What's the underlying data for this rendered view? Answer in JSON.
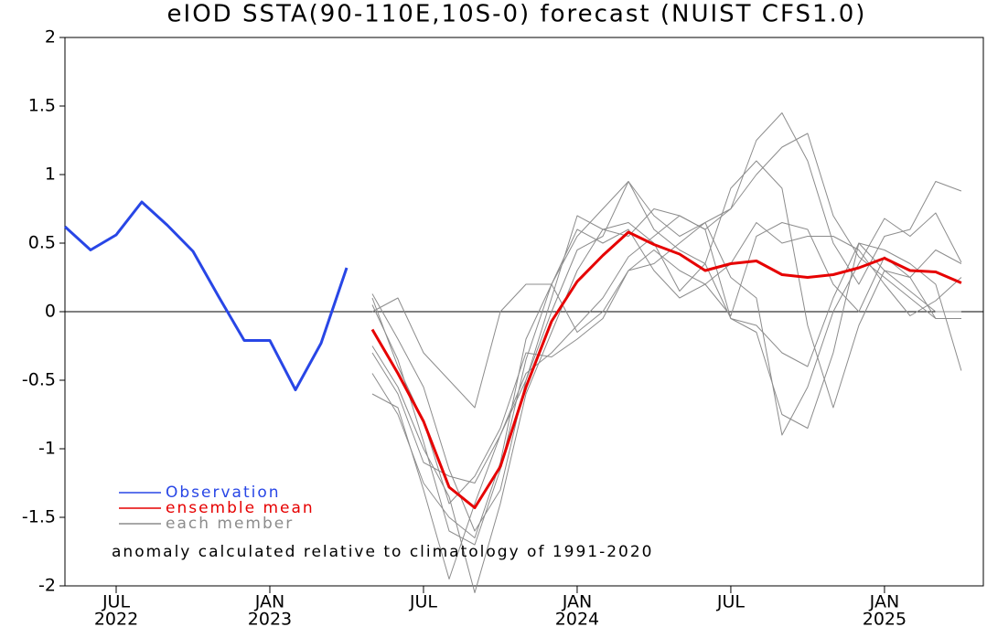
{
  "chart_data": {
    "type": "line",
    "title": "eIOD SSTA(90-110E,10S-0) forecast (NUIST CFS1.0)",
    "annotation": "anomaly calculated relative to climatology of 1991-2020",
    "x": [
      0,
      1,
      2,
      3,
      4,
      5,
      6,
      7,
      8,
      9,
      10,
      11,
      12,
      13,
      14,
      15,
      16,
      17,
      18,
      19,
      20,
      21,
      22,
      23,
      24,
      25,
      26,
      27,
      28,
      29,
      30,
      31,
      32,
      33,
      34,
      35
    ],
    "xlim": [
      0,
      35.86
    ],
    "xticks": [
      {
        "value": 2,
        "label": "JUL",
        "year": "2022"
      },
      {
        "value": 8,
        "label": "JAN",
        "year": "2023"
      },
      {
        "value": 14,
        "label": "JUL"
      },
      {
        "value": 20,
        "label": "JAN",
        "year": "2024"
      },
      {
        "value": 26,
        "label": "JUL"
      },
      {
        "value": 32,
        "label": "JAN",
        "year": "2025"
      }
    ],
    "ylim": [
      -2,
      2
    ],
    "yticks": [
      -2,
      -1.5,
      -1,
      -0.5,
      0,
      0.5,
      1,
      1.5,
      2
    ],
    "zero_line": true,
    "members": {
      "name": "each member",
      "color": "#8c8c8c",
      "series": [
        [
          null,
          null,
          null,
          null,
          null,
          null,
          null,
          null,
          null,
          null,
          null,
          null,
          0.13,
          -0.2,
          -0.55,
          -1.15,
          -1.6,
          -1.3,
          -0.5,
          0.0,
          0.45,
          0.55,
          0.95,
          0.7,
          0.55,
          0.65,
          0.75,
          1.0,
          1.2,
          1.3,
          0.7,
          0.4,
          0.25,
          0.1,
          -0.05,
          -0.05
        ],
        [
          null,
          null,
          null,
          null,
          null,
          null,
          null,
          null,
          null,
          null,
          null,
          null,
          0.05,
          -0.35,
          -0.95,
          -1.6,
          -1.7,
          -1.15,
          -0.35,
          0.2,
          0.55,
          0.75,
          0.95,
          0.6,
          0.45,
          0.35,
          -0.05,
          -0.1,
          -0.3,
          -0.4,
          0.1,
          0.5,
          0.45,
          0.35,
          0.2,
          -0.43
        ],
        [
          null,
          null,
          null,
          null,
          null,
          null,
          null,
          null,
          null,
          null,
          null,
          null,
          -0.6,
          -0.7,
          -1.3,
          -1.95,
          -1.4,
          -0.9,
          -0.5,
          0.1,
          0.7,
          0.6,
          0.55,
          0.75,
          0.7,
          0.6,
          0.75,
          1.25,
          1.45,
          1.1,
          0.5,
          0.2,
          0.55,
          0.6,
          0.95,
          0.88
        ],
        [
          null,
          null,
          null,
          null,
          null,
          null,
          null,
          null,
          null,
          null,
          null,
          null,
          -0.25,
          -0.55,
          -1.0,
          -1.35,
          -2.05,
          -1.4,
          -0.6,
          -0.15,
          0.3,
          0.6,
          0.65,
          0.5,
          0.15,
          0.35,
          0.9,
          1.1,
          0.9,
          -0.1,
          -0.7,
          -0.1,
          0.3,
          0.15,
          0.0,
          0.0
        ],
        [
          null,
          null,
          null,
          null,
          null,
          null,
          null,
          null,
          null,
          null,
          null,
          null,
          0.0,
          0.1,
          -0.3,
          -0.5,
          -0.7,
          0.0,
          0.2,
          0.2,
          -0.15,
          0.0,
          0.3,
          0.35,
          0.5,
          0.65,
          0.25,
          0.1,
          -0.9,
          -0.55,
          0.0,
          0.35,
          0.68,
          0.55,
          0.72,
          0.36
        ],
        [
          null,
          null,
          null,
          null,
          null,
          null,
          null,
          null,
          null,
          null,
          null,
          null,
          -0.3,
          -0.6,
          -1.1,
          -1.2,
          -1.25,
          -0.9,
          -0.45,
          -0.3,
          -0.1,
          0.1,
          0.4,
          0.55,
          0.7,
          0.6,
          -0.05,
          -0.15,
          -0.75,
          -0.85,
          -0.3,
          0.5,
          0.3,
          0.25,
          0.45,
          0.35
        ],
        [
          null,
          null,
          null,
          null,
          null,
          null,
          null,
          null,
          null,
          null,
          null,
          null,
          0.1,
          -0.4,
          -0.8,
          -1.4,
          -1.2,
          -0.85,
          -0.3,
          -0.33,
          -0.2,
          -0.05,
          0.3,
          0.45,
          0.3,
          0.2,
          -0.03,
          0.55,
          0.65,
          0.6,
          0.2,
          0.0,
          0.4,
          0.25,
          -0.05,
          -0.05
        ],
        [
          null,
          null,
          null,
          null,
          null,
          null,
          null,
          null,
          null,
          null,
          null,
          null,
          -0.45,
          -0.75,
          -1.25,
          -1.5,
          -1.65,
          -1.1,
          -0.2,
          0.2,
          0.6,
          0.5,
          0.6,
          0.3,
          0.1,
          0.2,
          0.35,
          0.65,
          0.5,
          0.55,
          0.55,
          0.45,
          0.2,
          -0.03,
          0.08,
          0.25
        ]
      ]
    },
    "series": [
      {
        "name": "Observation",
        "color": "#2846e6",
        "values": [
          0.62,
          0.45,
          0.56,
          0.8,
          0.63,
          0.44,
          0.11,
          -0.21,
          -0.21,
          -0.57,
          -0.23,
          0.32,
          null,
          null,
          null,
          null,
          null,
          null,
          null,
          null,
          null,
          null,
          null,
          null,
          null,
          null,
          null,
          null,
          null,
          null,
          null,
          null,
          null,
          null,
          null,
          null
        ]
      },
      {
        "name": "ensemble mean",
        "color": "#e60000",
        "values": [
          null,
          null,
          null,
          null,
          null,
          null,
          null,
          null,
          null,
          null,
          null,
          null,
          -0.13,
          -0.45,
          -0.8,
          -1.28,
          -1.43,
          -1.13,
          -0.55,
          -0.07,
          0.22,
          0.41,
          0.58,
          0.49,
          0.42,
          0.3,
          0.35,
          0.37,
          0.27,
          0.25,
          0.27,
          0.32,
          0.39,
          0.3,
          0.29,
          0.21
        ]
      }
    ]
  }
}
